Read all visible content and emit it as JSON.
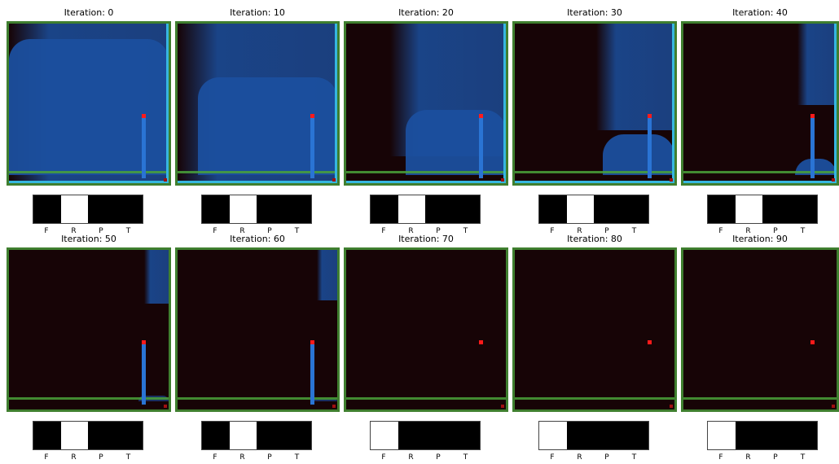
{
  "panels": [
    {
      "title": "Iteration: 0",
      "fill": 1.0,
      "active": 1
    },
    {
      "title": "Iteration: 10",
      "fill": 0.72,
      "active": 1
    },
    {
      "title": "Iteration: 20",
      "fill": 0.48,
      "active": 1
    },
    {
      "title": "Iteration: 30",
      "fill": 0.3,
      "active": 1
    },
    {
      "title": "Iteration: 40",
      "fill": 0.12,
      "active": 1
    },
    {
      "title": "Iteration: 50",
      "fill": 0.04,
      "active": 1
    },
    {
      "title": "Iteration: 60",
      "fill": 0.02,
      "active": 1
    },
    {
      "title": "Iteration: 70",
      "fill": 0.0,
      "active": 0
    },
    {
      "title": "Iteration: 80",
      "fill": 0.0,
      "active": 0
    },
    {
      "title": "Iteration: 90",
      "fill": 0.0,
      "active": 0
    }
  ],
  "bar_labels": [
    "F",
    "R",
    "P",
    "T"
  ],
  "colors": {
    "water": "#1b4f9e",
    "water_light": "#2a6fd0",
    "background": "#170406",
    "border": "#3f7f2f",
    "marker": "#ff1a1a"
  }
}
